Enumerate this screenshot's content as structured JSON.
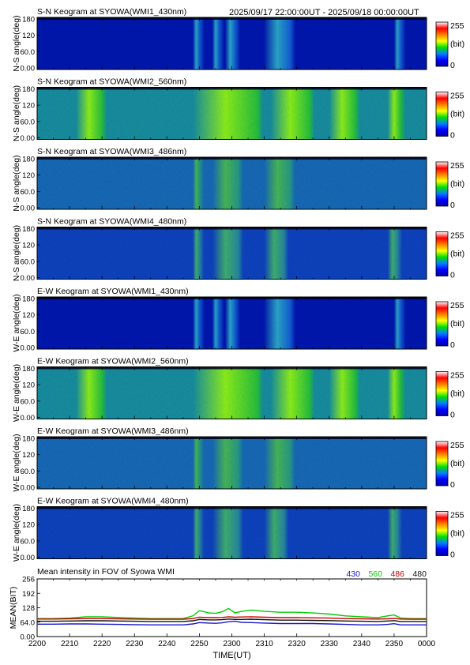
{
  "header": {
    "time_range": "2025/09/17 22:00:00UT - 2025/09/18 00:00:00UT"
  },
  "colorbar": {
    "max_label": "255",
    "unit_label": "(bit)",
    "min_label": "0",
    "stops": [
      "#0000a0",
      "#0000ff",
      "#0080ff",
      "#00e000",
      "#ffff00",
      "#ff8000",
      "#ff0000",
      "#ffffff"
    ]
  },
  "chart_data": [
    {
      "type": "heatmap",
      "title": "S-N Keogram at SYOWA(WMI1_430nm)",
      "ylabel": "N-S angle(deg)",
      "ylim": [
        0,
        180
      ],
      "yticks": [
        "180",
        "120",
        "60.0",
        "0.00"
      ],
      "xlim": [
        "2200",
        "0000"
      ],
      "base_level": 45,
      "max_level": 105,
      "colors": {
        "low": "#0d1fb0",
        "mid": "#1a5fd8",
        "high": "#2ca8c8"
      },
      "bright_intervals_minutes": [
        [
          48,
          50
        ],
        [
          54,
          56
        ],
        [
          58,
          61
        ],
        [
          70,
          78
        ],
        [
          110,
          112
        ]
      ]
    },
    {
      "type": "heatmap",
      "title": "S-N Keogram at SYOWA(WMI2_560nm)",
      "ylabel": "N-S angle(deg)",
      "ylim": [
        0,
        180
      ],
      "yticks": [
        "180",
        "120",
        "60.0",
        "0.00"
      ],
      "xlim": [
        "2200",
        "0000"
      ],
      "base_level": 90,
      "max_level": 170,
      "colors": {
        "low": "#1a8fa0",
        "mid": "#28c040",
        "high": "#8cf020"
      },
      "bright_intervals_minutes": [
        [
          12,
          20
        ],
        [
          48,
          68
        ],
        [
          72,
          84
        ],
        [
          90,
          98
        ],
        [
          108,
          112
        ]
      ]
    },
    {
      "type": "heatmap",
      "title": "S-N Keogram at SYOWA(WMI3_486nm)",
      "ylabel": "N-S angle(deg)",
      "ylim": [
        0,
        180
      ],
      "yticks": [
        "180",
        "120",
        "60.0",
        "0.00"
      ],
      "xlim": [
        "2200",
        "0000"
      ],
      "base_level": 70,
      "max_level": 100,
      "colors": {
        "low": "#1a6ab8",
        "mid": "#2a9a88",
        "high": "#48b858"
      },
      "bright_intervals_minutes": [
        [
          48,
          50
        ],
        [
          54,
          62
        ],
        [
          70,
          78
        ]
      ]
    },
    {
      "type": "heatmap",
      "title": "S-N Keogram at SYOWA(WMI4_480nm)",
      "ylabel": "N-S angle(deg)",
      "ylim": [
        0,
        180
      ],
      "yticks": [
        "180",
        "120",
        "60.0",
        "0.00"
      ],
      "xlim": [
        "2200",
        "0000"
      ],
      "base_level": 60,
      "max_level": 95,
      "colors": {
        "low": "#1444c0",
        "mid": "#2a8aa0",
        "high": "#40b070"
      },
      "bright_intervals_minutes": [
        [
          48,
          50
        ],
        [
          54,
          62
        ],
        [
          70,
          76
        ],
        [
          108,
          111
        ]
      ]
    },
    {
      "type": "heatmap",
      "title": "E-W Keogram at SYOWA(WMI1_430nm)",
      "ylabel": "W-E angle(deg)",
      "ylim": [
        0,
        180
      ],
      "yticks": [
        "180",
        "120",
        "60.0",
        "0.00"
      ],
      "xlim": [
        "2200",
        "0000"
      ],
      "base_level": 45,
      "max_level": 105,
      "colors": {
        "low": "#0d1fb0",
        "mid": "#1a5fd8",
        "high": "#2ca8c8"
      },
      "bright_intervals_minutes": [
        [
          48,
          50
        ],
        [
          54,
          56
        ],
        [
          58,
          61
        ],
        [
          70,
          78
        ],
        [
          110,
          112
        ]
      ]
    },
    {
      "type": "heatmap",
      "title": "E-W Keogram at SYOWA(WMI2_560nm)",
      "ylabel": "W-E angle(deg)",
      "ylim": [
        0,
        180
      ],
      "yticks": [
        "180",
        "120",
        "60.0",
        "0.00"
      ],
      "xlim": [
        "2200",
        "0000"
      ],
      "base_level": 90,
      "max_level": 170,
      "colors": {
        "low": "#1a8fa0",
        "mid": "#28c040",
        "high": "#8cf020"
      },
      "bright_intervals_minutes": [
        [
          12,
          20
        ],
        [
          48,
          68
        ],
        [
          72,
          84
        ],
        [
          90,
          98
        ],
        [
          108,
          112
        ]
      ]
    },
    {
      "type": "heatmap",
      "title": "E-W Keogram at SYOWA(WMI3_486nm)",
      "ylabel": "W-E angle(deg)",
      "ylim": [
        0,
        180
      ],
      "yticks": [
        "180",
        "120",
        "60.0",
        "0.00"
      ],
      "xlim": [
        "2200",
        "0000"
      ],
      "base_level": 70,
      "max_level": 100,
      "colors": {
        "low": "#1a6ab8",
        "mid": "#2a9a88",
        "high": "#48b858"
      },
      "bright_intervals_minutes": [
        [
          48,
          50
        ],
        [
          54,
          62
        ],
        [
          70,
          78
        ]
      ]
    },
    {
      "type": "heatmap",
      "title": "E-W Keogram at SYOWA(WMI4_480nm)",
      "ylabel": "W-E angle(deg)",
      "ylim": [
        0,
        180
      ],
      "yticks": [
        "180",
        "120",
        "60.0",
        "0.00"
      ],
      "xlim": [
        "2200",
        "0000"
      ],
      "base_level": 60,
      "max_level": 95,
      "colors": {
        "low": "#1444c0",
        "mid": "#2a8aa0",
        "high": "#40b070"
      },
      "bright_intervals_minutes": [
        [
          48,
          50
        ],
        [
          54,
          62
        ],
        [
          70,
          76
        ],
        [
          108,
          111
        ]
      ]
    },
    {
      "type": "line",
      "title": "Mean intensity in FOV of Syowa WMI",
      "ylabel": "MEAN(BIT)",
      "xlabel": "TIME(UT)",
      "ylim": [
        0,
        256
      ],
      "yticks": [
        "256",
        "192",
        "128",
        "64.0",
        "0.00"
      ],
      "xticks": [
        "2200",
        "2210",
        "2220",
        "2230",
        "2240",
        "2250",
        "2300",
        "2310",
        "2320",
        "2330",
        "2340",
        "2350",
        "0000"
      ],
      "x": [
        0,
        5,
        10,
        15,
        20,
        25,
        30,
        35,
        40,
        45,
        48,
        50,
        53,
        55,
        57,
        59,
        61,
        63,
        66,
        70,
        75,
        80,
        85,
        90,
        95,
        100,
        105,
        108,
        110,
        112,
        115,
        120
      ],
      "series": [
        {
          "name": "430",
          "color": "#1a1acc",
          "values": [
            55,
            55,
            56,
            56,
            55,
            54,
            53,
            52,
            52,
            52,
            56,
            62,
            60,
            59,
            61,
            66,
            68,
            63,
            62,
            60,
            58,
            58,
            58,
            56,
            54,
            52,
            52,
            54,
            57,
            52,
            52,
            52
          ]
        },
        {
          "name": "560",
          "color": "#00cc00",
          "values": [
            80,
            80,
            82,
            88,
            88,
            85,
            82,
            80,
            80,
            80,
            92,
            115,
            105,
            103,
            110,
            125,
            105,
            112,
            118,
            112,
            108,
            108,
            105,
            100,
            92,
            88,
            84,
            92,
            96,
            82,
            80,
            80
          ]
        },
        {
          "name": "486",
          "color": "#cc0000",
          "values": [
            78,
            78,
            79,
            80,
            80,
            79,
            78,
            77,
            77,
            77,
            80,
            86,
            84,
            84,
            85,
            88,
            86,
            87,
            88,
            86,
            84,
            84,
            83,
            82,
            80,
            79,
            78,
            79,
            81,
            78,
            77,
            77
          ]
        },
        {
          "name": "480",
          "color": "#111111",
          "values": [
            68,
            68,
            69,
            70,
            70,
            69,
            68,
            67,
            67,
            67,
            70,
            76,
            74,
            74,
            75,
            78,
            76,
            76,
            77,
            75,
            73,
            73,
            72,
            71,
            69,
            68,
            67,
            69,
            71,
            67,
            67,
            67
          ]
        }
      ]
    }
  ]
}
